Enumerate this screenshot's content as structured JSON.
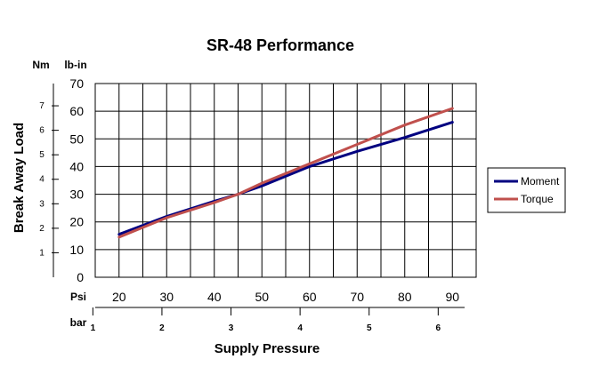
{
  "chart_data": {
    "type": "line",
    "title": "SR-48 Performance",
    "xlabel": "Supply Pressure",
    "ylabel": "Break Away Load",
    "y_unit_primary": "lb-in",
    "y_unit_secondary": "Nm",
    "x_unit_primary": "Psi",
    "x_unit_secondary": "bar",
    "xlim": [
      15,
      95
    ],
    "ylim": [
      0,
      70
    ],
    "x_ticks": [
      20,
      30,
      40,
      50,
      60,
      70,
      80,
      90
    ],
    "y_ticks": [
      0,
      10,
      20,
      30,
      40,
      50,
      60,
      70
    ],
    "nm_ticks": [
      1,
      2,
      3,
      4,
      5,
      6,
      7
    ],
    "bar_ticks": [
      1,
      2,
      3,
      4,
      5,
      6
    ],
    "grid": true,
    "legend_position": "right",
    "series": [
      {
        "name": "Moment",
        "color": "#000080",
        "x": [
          20,
          30,
          40,
          45,
          50,
          60,
          70,
          80,
          90
        ],
        "y": [
          15.5,
          22,
          27.5,
          30,
          33,
          40,
          45.5,
          50.5,
          56
        ]
      },
      {
        "name": "Torque",
        "color": "#c0504d",
        "x": [
          20,
          30,
          40,
          45,
          50,
          60,
          70,
          80,
          90
        ],
        "y": [
          14.5,
          21.5,
          27,
          30,
          34,
          41,
          48,
          55,
          61
        ]
      }
    ]
  }
}
